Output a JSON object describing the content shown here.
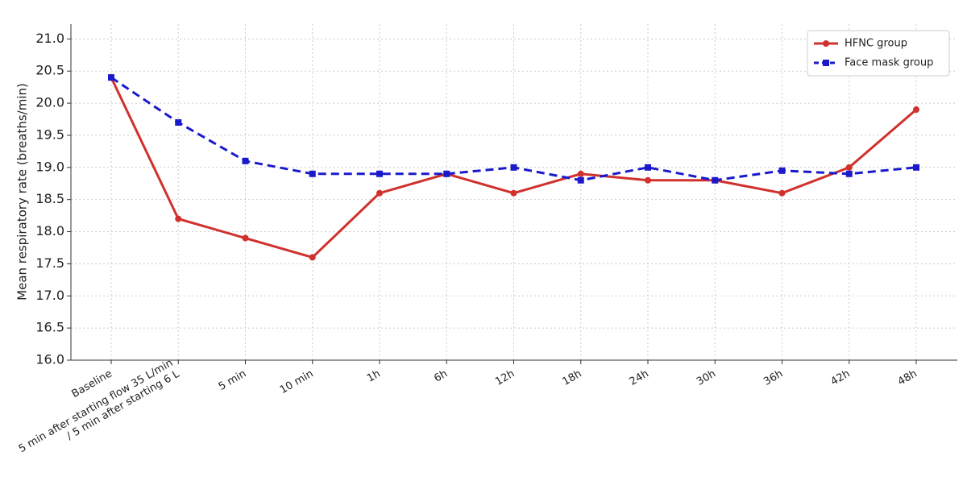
{
  "chart_data": {
    "type": "line",
    "y_label": "Mean respiratory rate (breaths/min)",
    "categories": [
      "Baseline",
      "5 min after starting flow 35 L/min\n/ 5 min after starting 6 L",
      "5 min",
      "10 min",
      "1h",
      "6h",
      "12h",
      "18h",
      "24h",
      "30h",
      "36h",
      "42h",
      "48h"
    ],
    "series": [
      {
        "name": "HFNC group",
        "color": "#d0312d",
        "dash": false,
        "marker": "circle",
        "values": [
          20.4,
          18.2,
          17.9,
          17.6,
          18.6,
          18.9,
          18.6,
          18.9,
          18.8,
          18.8,
          18.6,
          19.0,
          19.9
        ]
      },
      {
        "name": "Face mask group",
        "color": "#1a1acc",
        "dash": true,
        "marker": "square",
        "values": [
          20.4,
          19.7,
          19.1,
          18.9,
          18.9,
          18.9,
          19.0,
          18.8,
          19.0,
          18.8,
          18.95,
          18.9,
          19.0
        ]
      }
    ],
    "ylim": [
      16.0,
      21.23
    ],
    "yticks": [
      {
        "value": 16,
        "label": "16.0"
      },
      {
        "value": 16.5,
        "label": "16.5"
      },
      {
        "value": 17,
        "label": "17.0"
      },
      {
        "value": 17.5,
        "label": "17.5"
      },
      {
        "value": 18,
        "label": "18.0"
      },
      {
        "value": 18.5,
        "label": "18.5"
      },
      {
        "value": 19,
        "label": "19.0"
      },
      {
        "value": 19.5,
        "label": "19.5"
      },
      {
        "value": 20,
        "label": "20.0"
      },
      {
        "value": 20.5,
        "label": "20.5"
      },
      {
        "value": 21,
        "label": "21.0"
      }
    ],
    "grid": true,
    "legend": "upper right"
  }
}
